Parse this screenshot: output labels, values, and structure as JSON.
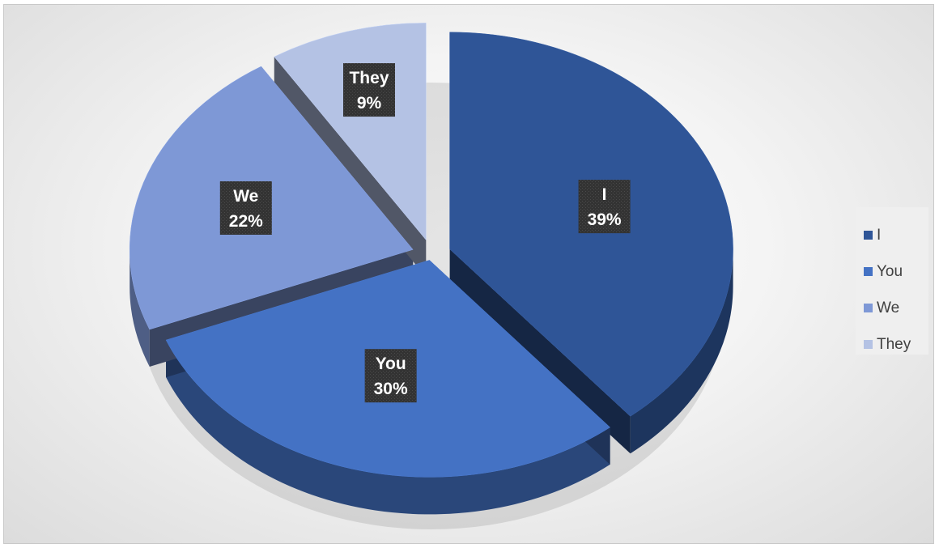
{
  "chart_data": {
    "type": "pie",
    "variant": "3d-exploded",
    "title": "",
    "categories": [
      "I",
      "You",
      "We",
      "They"
    ],
    "values": [
      39,
      30,
      22,
      9
    ],
    "data_labels": [
      {
        "category": "I",
        "percent": "39%"
      },
      {
        "category": "You",
        "percent": "30%"
      },
      {
        "category": "We",
        "percent": "22%"
      },
      {
        "category": "They",
        "percent": "9%"
      }
    ],
    "colors": [
      "#2f5597",
      "#4472c4",
      "#7e98d6",
      "#b4c2e4"
    ],
    "legend_position": "right",
    "legend": [
      {
        "label": "I",
        "color": "#2f5597"
      },
      {
        "label": "You",
        "color": "#4472c4"
      },
      {
        "label": "We",
        "color": "#7e98d6"
      },
      {
        "label": "They",
        "color": "#b4c2e4"
      }
    ]
  }
}
